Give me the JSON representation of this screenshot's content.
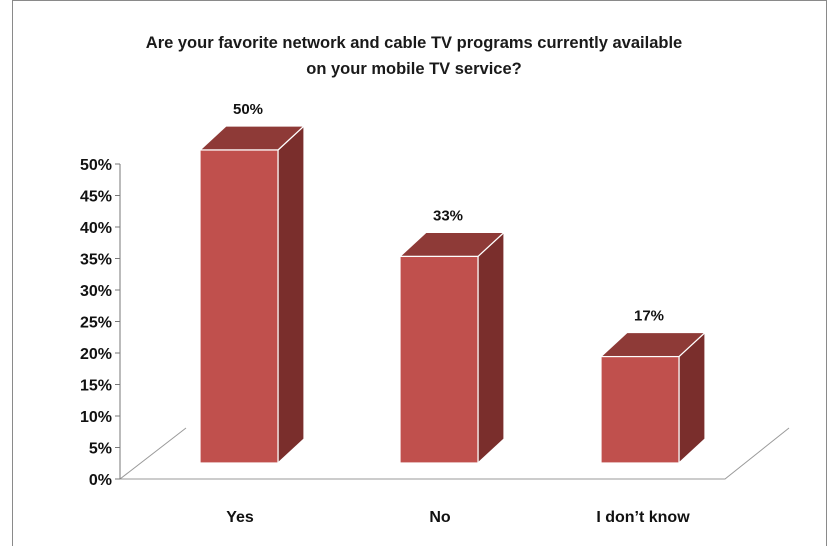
{
  "chart_data": {
    "type": "bar",
    "style": "3d-column",
    "title_lines": [
      "Are your favorite network and cable TV programs currently available",
      "on your mobile TV service?"
    ],
    "categories": [
      "Yes",
      "No",
      "I don’t know"
    ],
    "values": [
      50,
      33,
      17
    ],
    "data_labels": [
      "50%",
      "33%",
      "17%"
    ],
    "ylim": [
      0,
      50
    ],
    "y_ticks": [
      "0%",
      "5%",
      "10%",
      "15%",
      "20%",
      "25%",
      "30%",
      "35%",
      "40%",
      "45%",
      "50%"
    ],
    "grid": false,
    "legend": "none",
    "colors": {
      "front": "#C0504D",
      "side": "#7A2E2C",
      "top": "#8E3A37"
    }
  }
}
